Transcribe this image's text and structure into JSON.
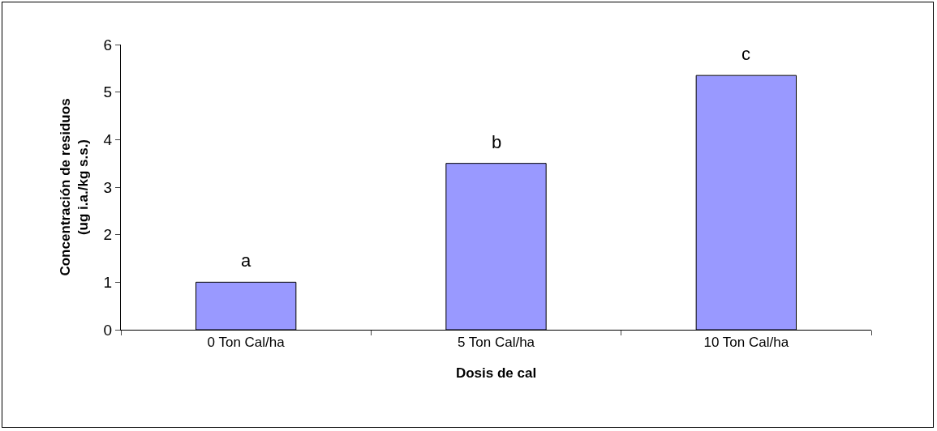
{
  "chart_data": {
    "type": "bar",
    "xlabel": "Dosis de cal",
    "ylabel": "Concentración de residuos\n(ug i.a./kg s.s.)",
    "categories": [
      "0 Ton Cal/ha",
      "5 Ton Cal/ha",
      "10 Ton Cal/ha"
    ],
    "values": [
      1.0,
      3.5,
      5.35
    ],
    "color": "#9999ff",
    "ylim": [
      0,
      6
    ],
    "yticks": [
      0,
      1,
      2,
      3,
      4,
      5,
      6
    ],
    "grid": false,
    "annotations": [
      {
        "text": "a",
        "x": "0 Ton Cal/ha",
        "y": 1.0
      },
      {
        "text": "b",
        "x": "5 Ton Cal/ha",
        "y": 3.5
      },
      {
        "text": "c",
        "x": "10 Ton Cal/ha",
        "y": 5.35
      }
    ]
  }
}
